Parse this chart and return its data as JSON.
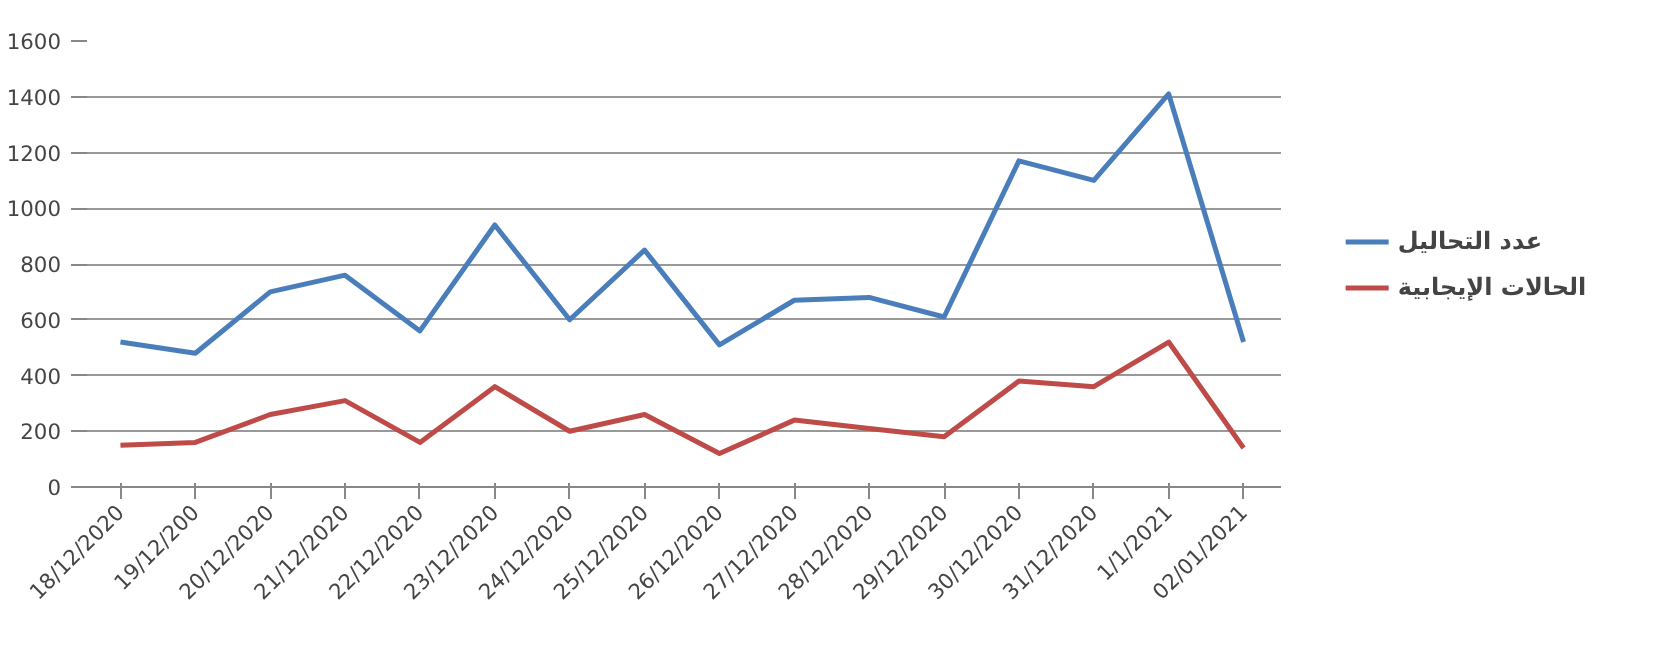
{
  "chart_data": {
    "type": "line",
    "categories": [
      "18/12/2020",
      "19/12/200",
      "20/12/2020",
      "21/12/2020",
      "22/12/2020",
      "23/12/2020",
      "24/12/2020",
      "25/12/2020",
      "26/12/2020",
      "27/12/2020",
      "28/12/2020",
      "29/12/2020",
      "30/12/2020",
      "31/12/2020",
      "1/1/2021",
      "02/01/2021"
    ],
    "series": [
      {
        "name": "عدد التحاليل",
        "color": "#4a7ebb",
        "values": [
          520,
          480,
          700,
          760,
          560,
          940,
          600,
          850,
          510,
          670,
          680,
          610,
          1170,
          1100,
          1410,
          520
        ]
      },
      {
        "name": "الحالات الإيجابية",
        "color": "#be4b48",
        "values": [
          150,
          160,
          260,
          310,
          160,
          360,
          200,
          260,
          120,
          240,
          210,
          180,
          380,
          360,
          520,
          140
        ]
      }
    ],
    "ylim": [
      0,
      1600
    ],
    "yticks": [
      0,
      200,
      400,
      600,
      800,
      1000,
      1200,
      1400,
      1600
    ],
    "grid": "y",
    "legend": "right",
    "marker": "none",
    "line_style": "solid"
  }
}
